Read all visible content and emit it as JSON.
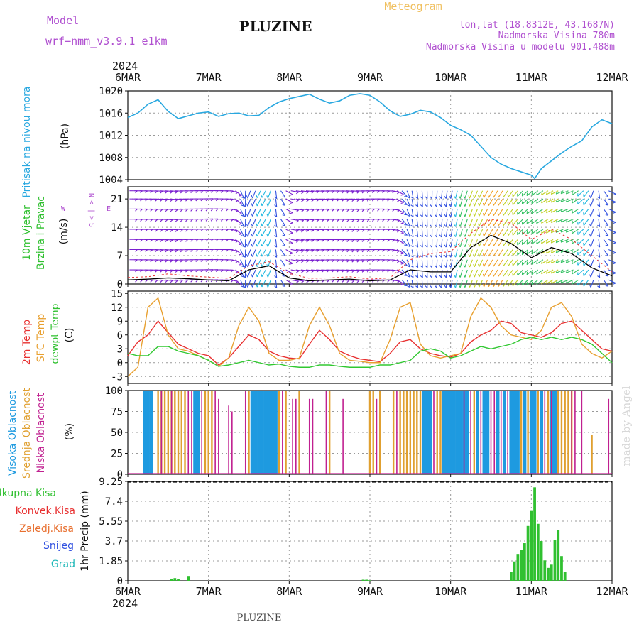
{
  "header": {
    "model_label": "Model",
    "model_name": "wrf−nmm_v3.9.1  e1km",
    "station": "PLUZINE",
    "product": "Meteogram",
    "lonlat": "lon,lat (18.8312E, 43.1687N)",
    "elevation": "Nadmorska Visina 780m",
    "model_elevation": "Nadmorska Visina u modelu 901.488m",
    "signature": "made by Angel",
    "footer_station": "PLUZINE"
  },
  "time_axis": {
    "year": "2024",
    "labels": [
      "6MAR",
      "7MAR",
      "8MAR",
      "9MAR",
      "10MAR",
      "11MAR",
      "12MAR"
    ],
    "hours_total": 144
  },
  "chart_data": [
    {
      "type": "line",
      "name": "pressure",
      "ylabel_lines": [
        "Pritisak na nivou mora",
        "(hPa)"
      ],
      "ylim": [
        1004,
        1020
      ],
      "yticks": [
        1004,
        1008,
        1012,
        1016,
        1020
      ],
      "grid": true,
      "color": "#29a8e0",
      "x_hours": [
        0,
        3,
        6,
        9,
        12,
        15,
        18,
        21,
        24,
        27,
        30,
        33,
        36,
        39,
        42,
        45,
        48,
        51,
        54,
        57,
        60,
        63,
        66,
        69,
        72,
        75,
        78,
        81,
        84,
        87,
        90,
        93,
        96,
        99,
        102,
        105,
        108,
        111,
        114,
        117,
        120,
        121,
        123,
        126,
        129,
        132,
        135,
        138,
        141,
        144
      ],
      "values": [
        1015.2,
        1016.0,
        1017.6,
        1018.4,
        1016.3,
        1015.0,
        1015.5,
        1016.0,
        1016.2,
        1015.4,
        1015.9,
        1016.0,
        1015.5,
        1015.6,
        1017.0,
        1018.0,
        1018.6,
        1019.0,
        1019.4,
        1018.5,
        1017.8,
        1018.2,
        1019.2,
        1019.5,
        1019.2,
        1018.0,
        1016.4,
        1015.4,
        1015.8,
        1016.5,
        1016.2,
        1015.2,
        1013.8,
        1013.0,
        1012.0,
        1010.0,
        1008.0,
        1006.8,
        1006.0,
        1005.4,
        1004.8,
        1004.2,
        1006.0,
        1007.4,
        1008.8,
        1010.0,
        1011.0,
        1013.5,
        1014.8,
        1014.1
      ]
    },
    {
      "type": "barbs",
      "name": "wind",
      "ylabel_lines": [
        "10m Vjetar",
        "Brzina i Pravac",
        "(m/s)"
      ],
      "compass": [
        "N",
        "<",
        "|",
        ">",
        "S",
        "W",
        "E"
      ],
      "ylim": [
        0,
        24
      ],
      "yticks": [
        0,
        7,
        14,
        21
      ],
      "grid": true,
      "speed_color": "#000000",
      "gust_color": "#e83030",
      "x_hours": [
        0,
        6,
        12,
        18,
        24,
        30,
        36,
        42,
        48,
        54,
        60,
        66,
        72,
        78,
        84,
        90,
        96,
        102,
        108,
        114,
        120,
        126,
        132,
        138,
        144
      ],
      "speed": [
        1.0,
        1.2,
        1.5,
        1.3,
        1.0,
        0.8,
        3.5,
        4.5,
        1.5,
        0.8,
        1.0,
        1.2,
        0.8,
        1.0,
        3.5,
        3.0,
        3.0,
        9.0,
        12.0,
        10.0,
        6.5,
        9.0,
        7.5,
        4.0,
        2.0
      ],
      "gust": [
        1.6,
        1.8,
        2.5,
        2.0,
        1.7,
        1.4,
        4.5,
        5.5,
        2.6,
        1.4,
        1.5,
        1.8,
        1.2,
        1.5,
        6.0,
        7.5,
        8.0,
        12.5,
        16.0,
        15.0,
        11.0,
        13.5,
        11.0,
        7.0,
        3.0
      ],
      "direction_deg": [
        90,
        92,
        95,
        90,
        88,
        92,
        200,
        210,
        100,
        95,
        92,
        95,
        90,
        93,
        170,
        180,
        190,
        200,
        210,
        215,
        230,
        240,
        250,
        210,
        95
      ]
    },
    {
      "type": "line",
      "name": "temperature",
      "ylabel_lines": [
        "2m Temp",
        "SFC Temp",
        "dewpt Temp",
        "(C)"
      ],
      "ylim": [
        -4.5,
        15.5
      ],
      "yticks": [
        -3,
        0,
        3,
        6,
        9,
        12,
        15
      ],
      "grid": true,
      "x_hours": [
        0,
        3,
        6,
        9,
        12,
        15,
        18,
        21,
        24,
        27,
        30,
        33,
        36,
        39,
        42,
        45,
        48,
        51,
        54,
        57,
        60,
        63,
        66,
        69,
        72,
        75,
        78,
        81,
        84,
        87,
        90,
        93,
        96,
        99,
        102,
        105,
        108,
        111,
        114,
        117,
        120,
        123,
        126,
        129,
        132,
        135,
        138,
        141,
        144
      ],
      "series": [
        {
          "name": "2m Temp",
          "color": "#e83030",
          "values": [
            1.5,
            4.5,
            6.0,
            9.0,
            6.5,
            4.0,
            3.0,
            2.0,
            1.5,
            -0.5,
            1.0,
            3.5,
            6.0,
            5.0,
            2.5,
            1.5,
            1.0,
            0.8,
            4.0,
            7.0,
            5.0,
            2.5,
            1.5,
            0.8,
            0.5,
            0.2,
            2.0,
            4.5,
            5.0,
            3.0,
            2.0,
            1.5,
            1.2,
            2.0,
            4.5,
            6.0,
            7.0,
            9.0,
            8.5,
            6.5,
            6.0,
            5.5,
            6.5,
            8.5,
            9.0,
            7.0,
            5.0,
            3.0,
            2.5
          ]
        },
        {
          "name": "SFC Temp",
          "color": "#e8a030",
          "values": [
            -3.0,
            -1.0,
            12.0,
            14.0,
            6.0,
            3.0,
            2.5,
            1.5,
            0.5,
            -0.8,
            1.0,
            8.0,
            12.0,
            9.0,
            2.0,
            0.5,
            0.5,
            1.0,
            8.0,
            12.0,
            8.0,
            2.0,
            0.5,
            0.3,
            0.0,
            0.0,
            5.0,
            12.0,
            13.0,
            4.0,
            1.5,
            1.0,
            1.5,
            2.0,
            10.0,
            14.0,
            12.0,
            8.0,
            6.0,
            5.5,
            5.0,
            7.0,
            12.0,
            13.0,
            10.0,
            4.0,
            2.0,
            1.0,
            2.5
          ]
        },
        {
          "name": "dewpt Temp",
          "color": "#30c830",
          "values": [
            2.0,
            1.5,
            1.5,
            3.5,
            3.5,
            2.5,
            2.0,
            1.5,
            0.5,
            -0.8,
            -0.5,
            0.0,
            0.5,
            0.0,
            -0.5,
            -0.3,
            -0.8,
            -1.0,
            -1.0,
            -0.5,
            -0.5,
            -0.8,
            -1.0,
            -1.0,
            -1.0,
            -0.5,
            -0.5,
            0.0,
            0.5,
            2.5,
            3.0,
            2.5,
            1.0,
            1.5,
            2.5,
            3.5,
            3.0,
            3.5,
            4.0,
            5.0,
            5.5,
            5.0,
            5.5,
            5.0,
            5.5,
            5.0,
            4.0,
            2.0,
            0.0
          ]
        }
      ]
    },
    {
      "type": "bar",
      "name": "cloud_cover",
      "ylabel_lines": [
        "Visoka Oblacnost",
        "Srednja Oblacnost",
        "Niska Oblacnost",
        "(%)"
      ],
      "ylim": [
        0,
        100
      ],
      "yticks": [
        0,
        25,
        50,
        75,
        100
      ],
      "grid": true,
      "series": [
        {
          "name": "Visoka Oblacnost",
          "color": "#1e9ae0",
          "points": [
            [
              5,
              100
            ],
            [
              6,
              100
            ],
            [
              7,
              100
            ],
            [
              20,
              100
            ],
            [
              21,
              100
            ],
            [
              37,
              100
            ],
            [
              38,
              100
            ],
            [
              39,
              100
            ],
            [
              40,
              100
            ],
            [
              41,
              100
            ],
            [
              42,
              100
            ],
            [
              43,
              100
            ],
            [
              44,
              100
            ],
            [
              88,
              100
            ],
            [
              89,
              100
            ],
            [
              90,
              100
            ],
            [
              94,
              100
            ],
            [
              95,
              100
            ],
            [
              96,
              100
            ],
            [
              97,
              100
            ],
            [
              98,
              100
            ],
            [
              99,
              100
            ],
            [
              100,
              100
            ],
            [
              101,
              100
            ],
            [
              104,
              100
            ],
            [
              106,
              100
            ],
            [
              107,
              100
            ],
            [
              110,
              100
            ],
            [
              112,
              100
            ],
            [
              114,
              100
            ],
            [
              115,
              100
            ],
            [
              116,
              100
            ],
            [
              118,
              100
            ],
            [
              120,
              100
            ],
            [
              121,
              100
            ],
            [
              123,
              100
            ],
            [
              126,
              100
            ],
            [
              127,
              100
            ]
          ]
        },
        {
          "name": "Srednja Oblacnost",
          "color": "#e0a030",
          "points": [
            [
              9,
              100
            ],
            [
              10,
              100
            ],
            [
              11,
              100
            ],
            [
              12,
              100
            ],
            [
              13,
              100
            ],
            [
              14,
              100
            ],
            [
              15,
              100
            ],
            [
              16,
              100
            ],
            [
              17,
              100
            ],
            [
              23,
              100
            ],
            [
              24,
              100
            ],
            [
              25,
              100
            ],
            [
              36,
              100
            ],
            [
              45,
              100
            ],
            [
              47,
              100
            ],
            [
              51,
              100
            ],
            [
              60,
              100
            ],
            [
              72,
              100
            ],
            [
              73,
              100
            ],
            [
              75,
              100
            ],
            [
              79,
              100
            ],
            [
              81,
              100
            ],
            [
              82,
              100
            ],
            [
              83,
              100
            ],
            [
              84,
              100
            ],
            [
              85,
              100
            ],
            [
              86,
              100
            ],
            [
              87,
              100
            ],
            [
              92,
              100
            ],
            [
              93,
              100
            ],
            [
              103,
              100
            ],
            [
              117,
              100
            ],
            [
              119,
              100
            ],
            [
              122,
              100
            ],
            [
              125,
              100
            ],
            [
              128,
              100
            ],
            [
              129,
              100
            ],
            [
              130,
              100
            ],
            [
              131,
              100
            ],
            [
              132,
              100
            ],
            [
              138,
              47
            ]
          ]
        },
        {
          "name": "Niska Oblacnost",
          "color": "#c02090",
          "points": [
            [
              10,
              100
            ],
            [
              13,
              100
            ],
            [
              18,
              100
            ],
            [
              19,
              100
            ],
            [
              22,
              100
            ],
            [
              26,
              100
            ],
            [
              27,
              90
            ],
            [
              30,
              82
            ],
            [
              31,
              75
            ],
            [
              35,
              100
            ],
            [
              46,
              100
            ],
            [
              49,
              90
            ],
            [
              50,
              90
            ],
            [
              54,
              90
            ],
            [
              55,
              90
            ],
            [
              59,
              100
            ],
            [
              64,
              90
            ],
            [
              74,
              90
            ],
            [
              80,
              100
            ],
            [
              91,
              100
            ],
            [
              100,
              100
            ],
            [
              102,
              100
            ],
            [
              105,
              100
            ],
            [
              108,
              100
            ],
            [
              109,
              100
            ],
            [
              111,
              100
            ],
            [
              113,
              100
            ],
            [
              124,
              100
            ],
            [
              126,
              100
            ],
            [
              132,
              100
            ],
            [
              133,
              100
            ],
            [
              135,
              100
            ],
            [
              143,
              90
            ]
          ]
        }
      ]
    },
    {
      "type": "bar",
      "name": "precipitation",
      "ylabel_lines": [
        "1hr Precip (mm)"
      ],
      "legend": [
        "Ukupna Kisa",
        "Konvek.Kisa",
        "Zaledj.Kisa",
        "Snijeg",
        "Grad"
      ],
      "legend_colors": [
        "#30c030",
        "#e83030",
        "#e87030",
        "#3050e0",
        "#20b8b8"
      ],
      "ylim": [
        0,
        9.25
      ],
      "yticks": [
        0,
        1.85,
        3.7,
        5.55,
        7.4,
        9.25
      ],
      "grid": true,
      "color": "#30c030",
      "x_hours": [
        13,
        14,
        15,
        18,
        70,
        71,
        72,
        114,
        115,
        116,
        117,
        118,
        119,
        120,
        121,
        122,
        123,
        124,
        125,
        126,
        127,
        128,
        129,
        130
      ],
      "values": [
        0.2,
        0.25,
        0.15,
        0.45,
        0.1,
        0.1,
        0.05,
        0.8,
        1.8,
        2.5,
        2.9,
        3.5,
        5.1,
        6.5,
        8.7,
        5.3,
        3.7,
        1.9,
        1.2,
        1.5,
        3.8,
        4.7,
        2.3,
        0.8
      ]
    }
  ]
}
